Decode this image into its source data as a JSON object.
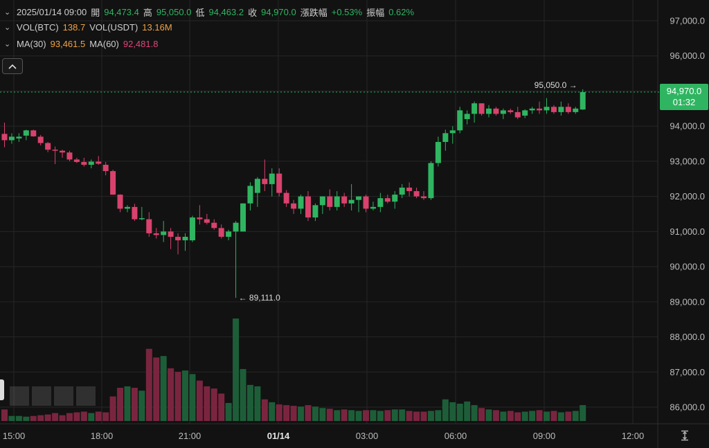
{
  "legend": {
    "ohlc": {
      "datetime": "2025/01/14 09:00",
      "open_label": "開",
      "open": "94,473.4",
      "high_label": "高",
      "high": "95,050.0",
      "low_label": "低",
      "low": "94,463.2",
      "close_label": "收",
      "close": "94,970.0",
      "change_label": "漲跌幅",
      "change": "+0.53%",
      "amp_label": "振幅",
      "amp": "0.62%"
    },
    "volume": {
      "btc_label": "VOL(BTC)",
      "btc": "138.7",
      "usdt_label": "VOL(USDT)",
      "usdt": "13.16M"
    },
    "ma": {
      "ma30_label": "MA(30)",
      "ma30": "93,461.5",
      "ma60_label": "MA(60)",
      "ma60": "92,481.8"
    }
  },
  "current_price": {
    "price": "94,970.0",
    "countdown": "01:32"
  },
  "annotations": {
    "high_marker": "95,050.0",
    "low_marker": "89,111.0"
  },
  "colors": {
    "up": "#2fb561",
    "down": "#d9426d",
    "vol_up": "#1d5e38",
    "vol_down": "#7a2540",
    "ma30": "#f0a245",
    "ma60": "#e0457a"
  },
  "icons": {
    "collapse": "chevron-up-icon",
    "legend_toggle": "chevron-down-icon",
    "axis_fit": "fit-axis-icon",
    "arrow": "arrow-icon"
  },
  "chart_data": {
    "type": "candlestick",
    "interval": "30m",
    "y_axis": {
      "ticks": [
        "97,000.0",
        "96,000.0",
        "95,000.0",
        "94,000.0",
        "93,000.0",
        "92,000.0",
        "91,000.0",
        "90,000.0",
        "89,000.0",
        "88,000.0",
        "87,000.0",
        "86,000.0"
      ],
      "ylim": [
        85600,
        97300
      ]
    },
    "x_axis": {
      "ticks": [
        "15:00",
        "18:00",
        "21:00",
        "01/14",
        "03:00",
        "06:00",
        "09:00",
        "12:00"
      ]
    },
    "candles": [
      {
        "o": 93780,
        "h": 94100,
        "l": 93400,
        "c": 93600
      },
      {
        "o": 93600,
        "h": 93800,
        "l": 93500,
        "c": 93700
      },
      {
        "o": 93650,
        "h": 93800,
        "l": 93550,
        "c": 93700
      },
      {
        "o": 93730,
        "h": 93900,
        "l": 93600,
        "c": 93880
      },
      {
        "o": 93880,
        "h": 93900,
        "l": 93700,
        "c": 93710
      },
      {
        "o": 93700,
        "h": 93750,
        "l": 93450,
        "c": 93520
      },
      {
        "o": 93520,
        "h": 93550,
        "l": 93260,
        "c": 93330
      },
      {
        "o": 93330,
        "h": 93420,
        "l": 92920,
        "c": 93300
      },
      {
        "o": 93300,
        "h": 93330,
        "l": 93100,
        "c": 93250
      },
      {
        "o": 93250,
        "h": 93300,
        "l": 93000,
        "c": 93050
      },
      {
        "o": 93050,
        "h": 93100,
        "l": 92950,
        "c": 92980
      },
      {
        "o": 92980,
        "h": 93100,
        "l": 92850,
        "c": 92900
      },
      {
        "o": 92900,
        "h": 93050,
        "l": 92800,
        "c": 92990
      },
      {
        "o": 92990,
        "h": 93150,
        "l": 92900,
        "c": 92930
      },
      {
        "o": 92900,
        "h": 92980,
        "l": 92600,
        "c": 92720
      },
      {
        "o": 92720,
        "h": 92760,
        "l": 92050,
        "c": 92050
      },
      {
        "o": 92050,
        "h": 92060,
        "l": 91550,
        "c": 91650
      },
      {
        "o": 91650,
        "h": 91750,
        "l": 91550,
        "c": 91700
      },
      {
        "o": 91700,
        "h": 91790,
        "l": 91300,
        "c": 91350
      },
      {
        "o": 91350,
        "h": 91700,
        "l": 91320,
        "c": 91380
      },
      {
        "o": 91350,
        "h": 91550,
        "l": 90850,
        "c": 90950
      },
      {
        "o": 90950,
        "h": 91100,
        "l": 90800,
        "c": 90900
      },
      {
        "o": 90900,
        "h": 91300,
        "l": 90700,
        "c": 91000
      },
      {
        "o": 91000,
        "h": 91100,
        "l": 90500,
        "c": 90850
      },
      {
        "o": 90850,
        "h": 90950,
        "l": 90350,
        "c": 90750
      },
      {
        "o": 90750,
        "h": 90950,
        "l": 90450,
        "c": 90850
      },
      {
        "o": 90750,
        "h": 91450,
        "l": 90700,
        "c": 91400
      },
      {
        "o": 91400,
        "h": 91750,
        "l": 91200,
        "c": 91350
      },
      {
        "o": 91350,
        "h": 91500,
        "l": 91200,
        "c": 91250
      },
      {
        "o": 91250,
        "h": 91350,
        "l": 91050,
        "c": 91100
      },
      {
        "o": 91100,
        "h": 91200,
        "l": 90800,
        "c": 90850
      },
      {
        "o": 90850,
        "h": 91050,
        "l": 90750,
        "c": 91000
      },
      {
        "o": 91000,
        "h": 91300,
        "l": 89111,
        "c": 91250
      },
      {
        "o": 91000,
        "h": 91800,
        "l": 91000,
        "c": 91800
      },
      {
        "o": 91800,
        "h": 92400,
        "l": 91600,
        "c": 92300
      },
      {
        "o": 92100,
        "h": 92550,
        "l": 91700,
        "c": 92500
      },
      {
        "o": 92500,
        "h": 93050,
        "l": 92150,
        "c": 92350
      },
      {
        "o": 92350,
        "h": 92800,
        "l": 92000,
        "c": 92650
      },
      {
        "o": 92650,
        "h": 92800,
        "l": 92000,
        "c": 92100
      },
      {
        "o": 92100,
        "h": 92180,
        "l": 91700,
        "c": 91800
      },
      {
        "o": 91800,
        "h": 91900,
        "l": 91500,
        "c": 91650
      },
      {
        "o": 91650,
        "h": 92050,
        "l": 91500,
        "c": 92000
      },
      {
        "o": 92000,
        "h": 92150,
        "l": 91300,
        "c": 91400
      },
      {
        "o": 91400,
        "h": 91800,
        "l": 91300,
        "c": 91750
      },
      {
        "o": 91750,
        "h": 92000,
        "l": 91500,
        "c": 92000
      },
      {
        "o": 92000,
        "h": 92200,
        "l": 91600,
        "c": 91700
      },
      {
        "o": 91700,
        "h": 92150,
        "l": 91600,
        "c": 92000
      },
      {
        "o": 92000,
        "h": 92100,
        "l": 91700,
        "c": 91800
      },
      {
        "o": 91800,
        "h": 92350,
        "l": 91600,
        "c": 91900
      },
      {
        "o": 91900,
        "h": 92000,
        "l": 91550,
        "c": 92000
      },
      {
        "o": 92000,
        "h": 92050,
        "l": 91550,
        "c": 91650
      },
      {
        "o": 91650,
        "h": 91850,
        "l": 91600,
        "c": 91700
      },
      {
        "o": 91700,
        "h": 92100,
        "l": 91550,
        "c": 91950
      },
      {
        "o": 91950,
        "h": 92050,
        "l": 91800,
        "c": 91850
      },
      {
        "o": 91850,
        "h": 92150,
        "l": 91650,
        "c": 92050
      },
      {
        "o": 92050,
        "h": 92350,
        "l": 91950,
        "c": 92250
      },
      {
        "o": 92250,
        "h": 92400,
        "l": 92000,
        "c": 92150
      },
      {
        "o": 92150,
        "h": 92250,
        "l": 91950,
        "c": 92000
      },
      {
        "o": 92000,
        "h": 92150,
        "l": 91900,
        "c": 91950
      },
      {
        "o": 91950,
        "h": 93000,
        "l": 91900,
        "c": 92950
      },
      {
        "o": 92950,
        "h": 93700,
        "l": 92850,
        "c": 93550
      },
      {
        "o": 93550,
        "h": 93900,
        "l": 93300,
        "c": 93800
      },
      {
        "o": 93800,
        "h": 94000,
        "l": 93500,
        "c": 93880
      },
      {
        "o": 93880,
        "h": 94550,
        "l": 93800,
        "c": 94450
      },
      {
        "o": 94200,
        "h": 94450,
        "l": 94050,
        "c": 94350
      },
      {
        "o": 94350,
        "h": 94700,
        "l": 94100,
        "c": 94650
      },
      {
        "o": 94650,
        "h": 94650,
        "l": 94300,
        "c": 94350
      },
      {
        "o": 94350,
        "h": 94600,
        "l": 94250,
        "c": 94500
      },
      {
        "o": 94500,
        "h": 94550,
        "l": 94300,
        "c": 94350
      },
      {
        "o": 94350,
        "h": 94500,
        "l": 94200,
        "c": 94450
      },
      {
        "o": 94450,
        "h": 94500,
        "l": 94350,
        "c": 94400
      },
      {
        "o": 94400,
        "h": 94550,
        "l": 94200,
        "c": 94250
      },
      {
        "o": 94300,
        "h": 94480,
        "l": 94230,
        "c": 94450
      },
      {
        "o": 94450,
        "h": 94550,
        "l": 94350,
        "c": 94500
      },
      {
        "o": 94500,
        "h": 94700,
        "l": 94350,
        "c": 94450
      },
      {
        "o": 94450,
        "h": 94800,
        "l": 94350,
        "c": 94550
      },
      {
        "o": 94550,
        "h": 94600,
        "l": 94350,
        "c": 94400
      },
      {
        "o": 94400,
        "h": 94700,
        "l": 94300,
        "c": 94550
      },
      {
        "o": 94550,
        "h": 94650,
        "l": 94350,
        "c": 94400
      },
      {
        "o": 94400,
        "h": 94550,
        "l": 94350,
        "c": 94500
      },
      {
        "o": 94473.4,
        "h": 95050,
        "l": 94463.2,
        "c": 94970
      }
    ],
    "volumes": [
      16,
      7,
      7,
      6,
      7,
      8,
      9,
      11,
      8,
      11,
      12,
      13,
      11,
      13,
      12,
      34,
      46,
      48,
      46,
      42,
      100,
      88,
      90,
      73,
      68,
      70,
      65,
      56,
      48,
      45,
      38,
      25,
      142,
      72,
      50,
      48,
      30,
      26,
      23,
      22,
      21,
      20,
      22,
      20,
      18,
      17,
      15,
      16,
      15,
      14,
      15,
      15,
      14,
      15,
      16,
      16,
      14,
      13,
      13,
      14,
      15,
      30,
      26,
      24,
      27,
      22,
      18,
      16,
      15,
      13,
      14,
      12,
      13,
      14,
      15,
      13,
      14,
      12,
      13,
      14,
      22
    ]
  }
}
